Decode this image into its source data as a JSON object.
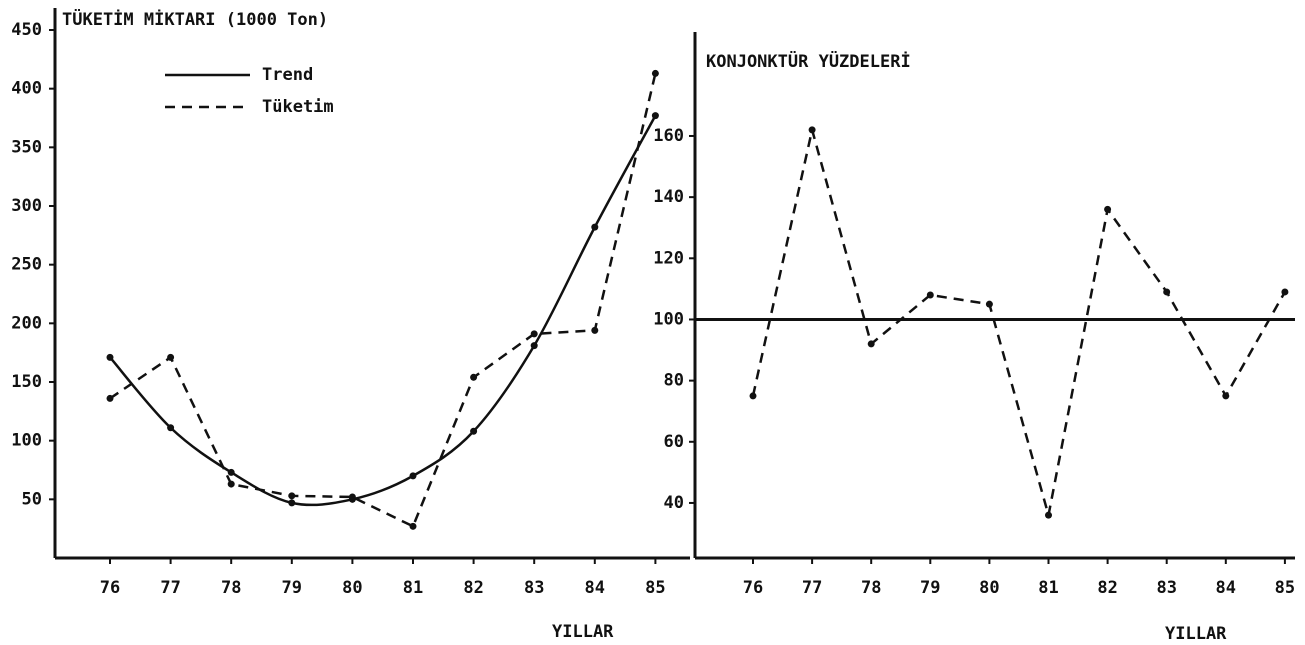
{
  "chart_data": [
    {
      "type": "line",
      "title": "TÜKETİM MİKTARI (1000 Ton)",
      "xlabel": "YILLAR",
      "categories": [
        "76",
        "77",
        "78",
        "79",
        "80",
        "81",
        "82",
        "83",
        "84",
        "85"
      ],
      "series": [
        {
          "name": "Trend",
          "color": "#111111",
          "style": "solid",
          "values": [
            171,
            111,
            73,
            47,
            50,
            70,
            108,
            181,
            282,
            377
          ]
        },
        {
          "name": "Tüketim",
          "color": "#111111",
          "style": "dashed",
          "values": [
            136,
            171,
            63,
            53,
            52,
            27,
            154,
            191,
            194,
            413
          ]
        }
      ],
      "ylim": [
        0,
        450
      ],
      "yticks": [
        50,
        100,
        150,
        200,
        250,
        300,
        350,
        400,
        450
      ]
    },
    {
      "type": "line",
      "title": "KONJONKTÜR YÜZDELERİ",
      "xlabel": "YILLAR",
      "categories": [
        "76",
        "77",
        "78",
        "79",
        "80",
        "81",
        "82",
        "83",
        "84",
        "85"
      ],
      "color": "#111111",
      "style": "dashed",
      "values": [
        75,
        162,
        92,
        108,
        105,
        36,
        136,
        109,
        75,
        109
      ],
      "reference_line": 100,
      "ylim": [
        22,
        194
      ],
      "yticks": [
        40,
        60,
        80,
        100,
        120,
        140,
        160
      ]
    }
  ]
}
